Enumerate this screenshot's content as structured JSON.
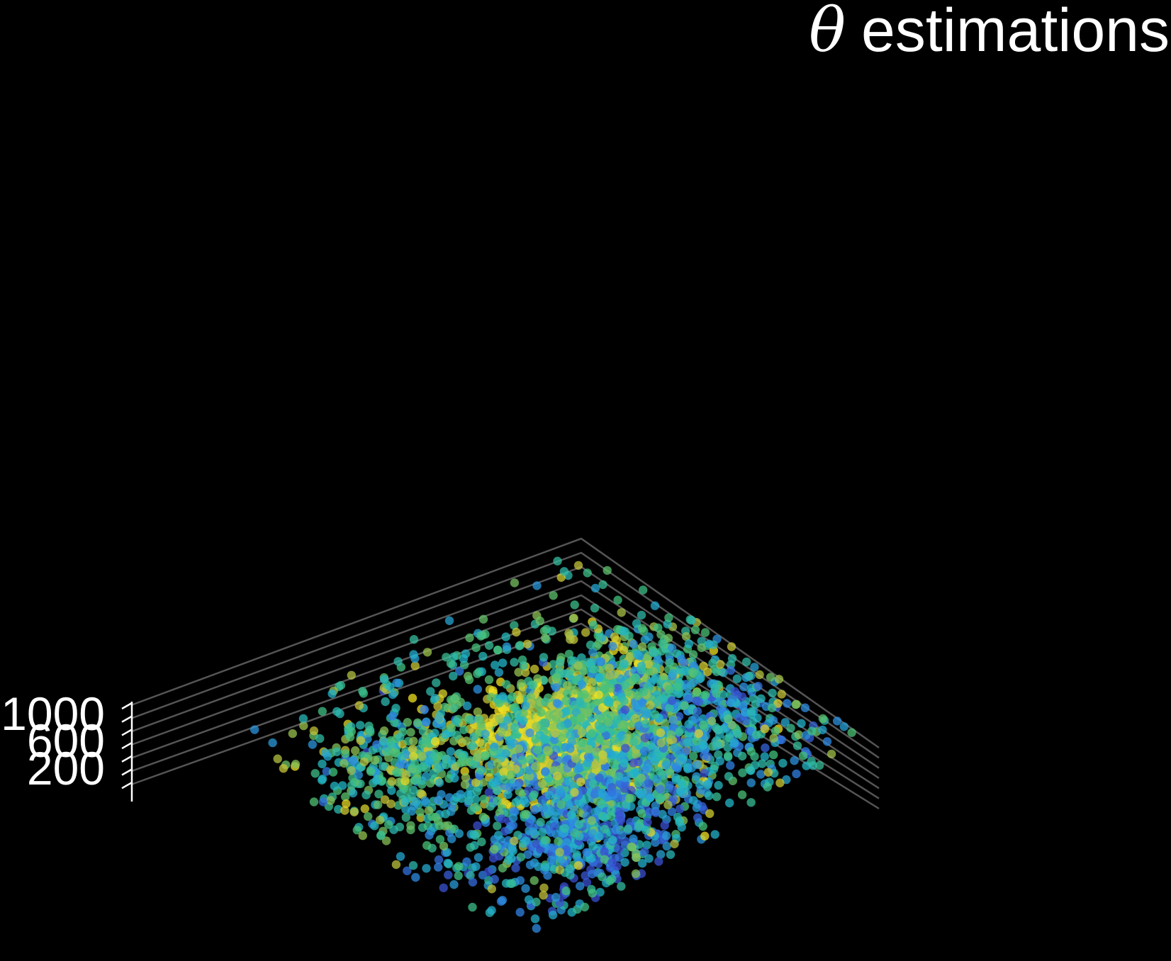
{
  "chart_data": {
    "type": "scatter",
    "subtype": "3d-scatter",
    "title_symbol": "θ",
    "title_text": "estimations",
    "background": "#000000",
    "grid": true,
    "grid_color": "#555555",
    "z_ticks": [
      "1000",
      "600",
      "200"
    ],
    "colormap": [
      "#3a4fd0",
      "#2f86e6",
      "#22b6c8",
      "#44c27a",
      "#c2c23a",
      "#f0e020"
    ],
    "point_alpha": 0.75,
    "series": [
      {
        "clusters": [
          {
            "cx": 0,
            "cy": 0.05,
            "spread": 0.2,
            "count": 900,
            "color_mean": 0.82
          },
          {
            "cx": 0.15,
            "cy": 0.3,
            "spread": 0.2,
            "count": 500,
            "color_mean": 0.55
          },
          {
            "cx": -0.3,
            "cy": 0.55,
            "spread": 0.25,
            "count": 600,
            "color_mean": 0.25
          },
          {
            "cx": 0.5,
            "cy": -0.1,
            "spread": 0.2,
            "count": 350,
            "color_mean": 0.6
          },
          {
            "cx": -0.55,
            "cy": -0.3,
            "spread": 0.22,
            "count": 350,
            "color_mean": 0.55
          },
          {
            "cx": 0.6,
            "cy": 0.35,
            "spread": 0.2,
            "count": 300,
            "color_mean": 0.3
          },
          {
            "cx": 0,
            "cy": 0,
            "spread": 0.8,
            "count": 900,
            "color_mean": 0.55
          }
        ]
      }
    ]
  }
}
